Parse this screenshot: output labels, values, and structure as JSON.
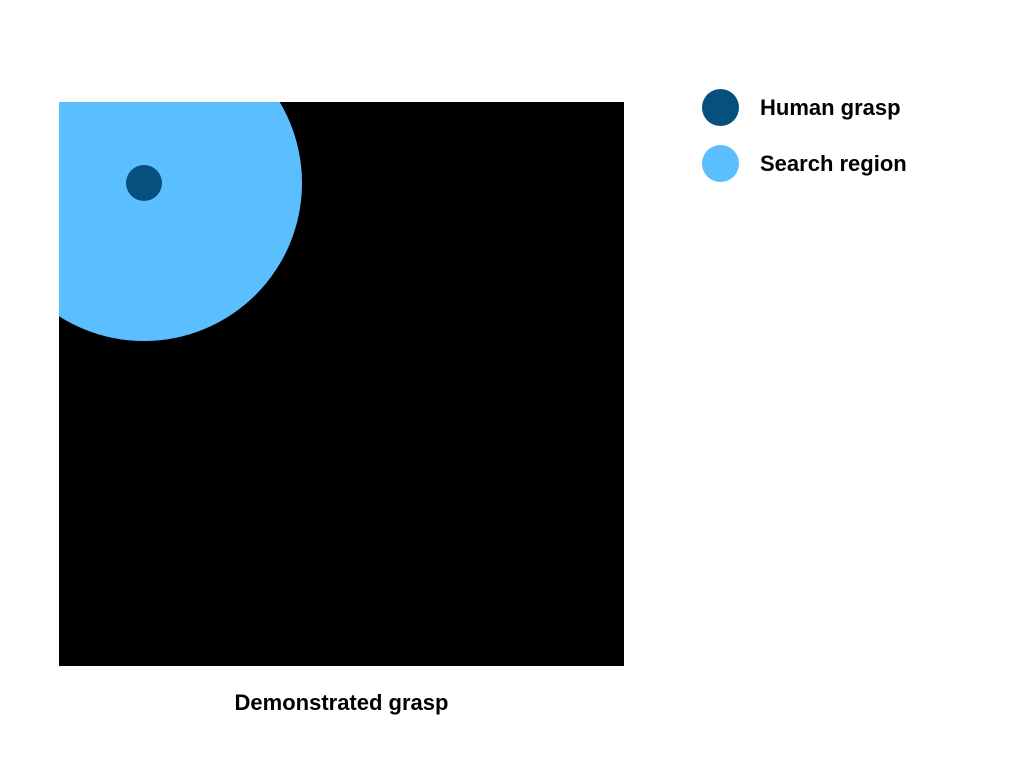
{
  "diagram": {
    "caption": "Demonstrated grasp",
    "background_color": "#000000",
    "search_region_color": "#5bbfff",
    "human_grasp_color": "#064f7e"
  },
  "legend": {
    "items": [
      {
        "label": "Human grasp",
        "color": "#064f7e",
        "icon": "dark-blue-circle-icon"
      },
      {
        "label": "Search region",
        "color": "#5bbfff",
        "icon": "light-blue-circle-icon"
      }
    ]
  }
}
